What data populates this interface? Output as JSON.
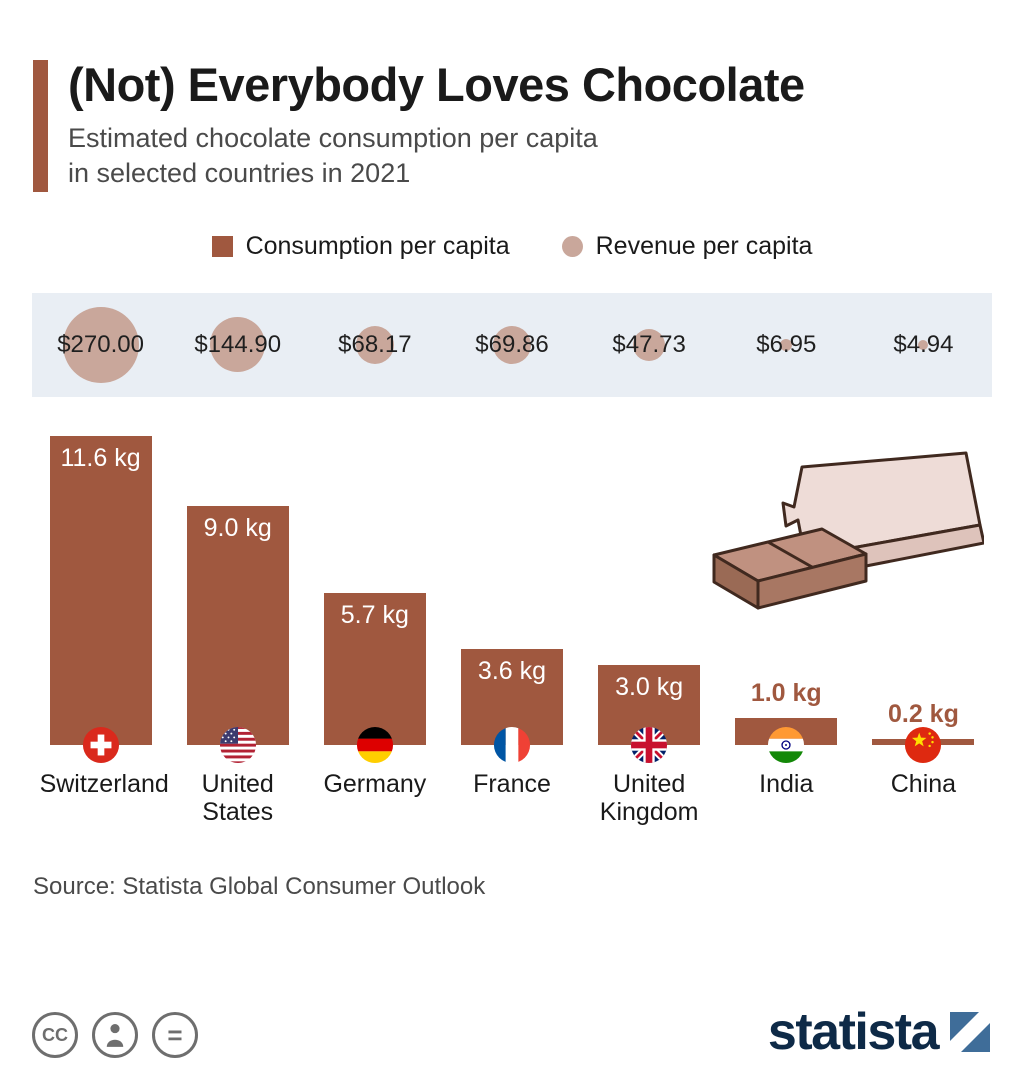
{
  "header": {
    "title": "(Not) Everybody Loves Chocolate",
    "subtitle_line1": "Estimated chocolate consumption per capita",
    "subtitle_line2": "in selected countries in 2021"
  },
  "legend": {
    "consumption_label": "Consumption per capita",
    "revenue_label": "Revenue per capita"
  },
  "chart_data": {
    "type": "bar",
    "title": "(Not) Everybody Loves Chocolate",
    "subtitle": "Estimated chocolate consumption per capita in selected countries in 2021",
    "categories": [
      "Switzerland",
      "United States",
      "Germany",
      "France",
      "United Kingdom",
      "India",
      "China"
    ],
    "series": [
      {
        "name": "Consumption per capita",
        "unit": "kg",
        "values": [
          11.6,
          9.0,
          5.7,
          3.6,
          3.0,
          1.0,
          0.2
        ],
        "labels": [
          "11.6 kg",
          "9.0 kg",
          "5.7 kg",
          "3.6 kg",
          "3.0 kg",
          "1.0 kg",
          "0.2 kg"
        ]
      },
      {
        "name": "Revenue per capita",
        "unit": "USD",
        "values": [
          270.0,
          144.9,
          68.17,
          69.86,
          47.73,
          6.95,
          4.94
        ],
        "labels": [
          "$270.00",
          "$144.90",
          "$68.17",
          "$69.86",
          "$47.73",
          "$6.95",
          "$4.94"
        ]
      }
    ],
    "ylim": [
      0,
      12
    ],
    "grid": false,
    "legend_position": "top",
    "colors": {
      "consumption": "#A0583F",
      "revenue": "#C9A79B",
      "band_background": "#E9EEF4"
    }
  },
  "flags": [
    "switzerland",
    "united-states",
    "germany",
    "france",
    "united-kingdom",
    "india",
    "china"
  ],
  "source": "Source: Statista Global Consumer Outlook",
  "footer": {
    "brand": "statista",
    "license_icons": [
      "cc",
      "attribution",
      "no-derivatives"
    ]
  }
}
